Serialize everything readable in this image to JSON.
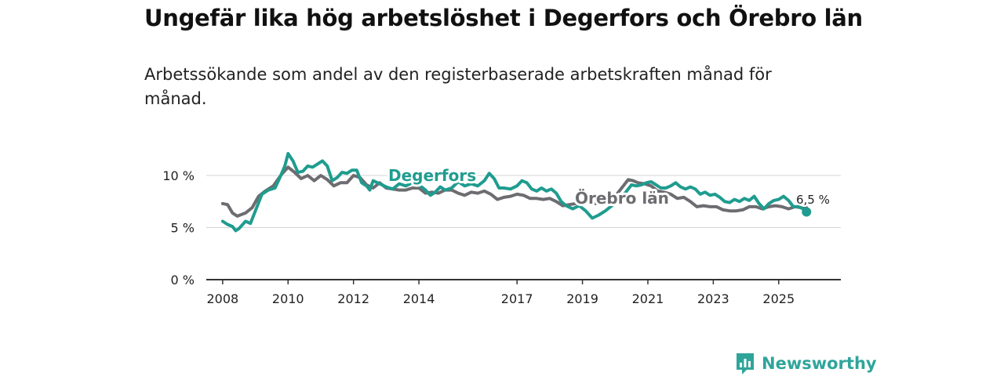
{
  "chart_data": {
    "type": "line",
    "title": "Ungefär lika hög arbetslöshet i Degerfors och Örebro län",
    "subtitle": "Arbetssökande som andel av den registerbaserade arbetskraften månad för månad.",
    "xlabel": "",
    "ylabel": "",
    "y_unit": "%",
    "xlim": [
      2007.5,
      2026.9
    ],
    "ylim": [
      0,
      10
    ],
    "x_ticks": [
      2008,
      2010,
      2012,
      2014,
      2017,
      2019,
      2021,
      2023,
      2025
    ],
    "y_ticks": [
      {
        "value": 0,
        "label": "0 %"
      },
      {
        "value": 5,
        "label": "5 %"
      },
      {
        "value": 10,
        "label": "10 %"
      }
    ],
    "series": [
      {
        "name": "Örebro län",
        "color": "#6d6c70",
        "points": [
          [
            2008.0,
            7.3
          ],
          [
            2008.15,
            7.2
          ],
          [
            2008.3,
            6.4
          ],
          [
            2008.45,
            6.1
          ],
          [
            2008.7,
            6.4
          ],
          [
            2008.9,
            6.9
          ],
          [
            2009.1,
            8.0
          ],
          [
            2009.3,
            8.5
          ],
          [
            2009.55,
            9.0
          ],
          [
            2009.8,
            10.1
          ],
          [
            2010.0,
            10.8
          ],
          [
            2010.2,
            10.3
          ],
          [
            2010.4,
            9.7
          ],
          [
            2010.6,
            10.0
          ],
          [
            2010.8,
            9.5
          ],
          [
            2011.0,
            10.0
          ],
          [
            2011.2,
            9.6
          ],
          [
            2011.4,
            9.0
          ],
          [
            2011.6,
            9.3
          ],
          [
            2011.8,
            9.3
          ],
          [
            2012.0,
            10.0
          ],
          [
            2012.2,
            9.8
          ],
          [
            2012.4,
            9.1
          ],
          [
            2012.6,
            8.8
          ],
          [
            2012.8,
            9.3
          ],
          [
            2013.0,
            8.8
          ],
          [
            2013.2,
            8.7
          ],
          [
            2013.4,
            8.6
          ],
          [
            2013.6,
            8.6
          ],
          [
            2013.8,
            8.8
          ],
          [
            2014.0,
            8.8
          ],
          [
            2014.2,
            8.3
          ],
          [
            2014.4,
            8.4
          ],
          [
            2014.6,
            8.3
          ],
          [
            2014.8,
            8.6
          ],
          [
            2015.0,
            8.6
          ],
          [
            2015.2,
            8.3
          ],
          [
            2015.4,
            8.1
          ],
          [
            2015.6,
            8.4
          ],
          [
            2015.8,
            8.3
          ],
          [
            2016.0,
            8.5
          ],
          [
            2016.2,
            8.2
          ],
          [
            2016.4,
            7.7
          ],
          [
            2016.6,
            7.9
          ],
          [
            2016.8,
            8.0
          ],
          [
            2017.0,
            8.2
          ],
          [
            2017.2,
            8.1
          ],
          [
            2017.4,
            7.8
          ],
          [
            2017.6,
            7.8
          ],
          [
            2017.8,
            7.7
          ],
          [
            2018.0,
            7.8
          ],
          [
            2018.2,
            7.5
          ],
          [
            2018.4,
            7.1
          ],
          [
            2018.6,
            7.2
          ],
          [
            2018.8,
            7.3
          ],
          [
            2019.0,
            7.5
          ],
          [
            2019.2,
            7.4
          ],
          [
            2019.4,
            7.3
          ],
          [
            2019.6,
            7.6
          ],
          [
            2019.8,
            7.8
          ],
          [
            2020.0,
            8.0
          ],
          [
            2020.2,
            8.8
          ],
          [
            2020.4,
            9.6
          ],
          [
            2020.55,
            9.5
          ],
          [
            2020.7,
            9.3
          ],
          [
            2020.9,
            9.2
          ],
          [
            2021.1,
            9.0
          ],
          [
            2021.3,
            8.5
          ],
          [
            2021.5,
            8.4
          ],
          [
            2021.7,
            8.2
          ],
          [
            2021.9,
            7.8
          ],
          [
            2022.1,
            7.9
          ],
          [
            2022.3,
            7.5
          ],
          [
            2022.5,
            7.0
          ],
          [
            2022.7,
            7.1
          ],
          [
            2022.9,
            7.0
          ],
          [
            2023.1,
            7.0
          ],
          [
            2023.3,
            6.7
          ],
          [
            2023.5,
            6.6
          ],
          [
            2023.7,
            6.6
          ],
          [
            2023.9,
            6.7
          ],
          [
            2024.1,
            7.0
          ],
          [
            2024.3,
            7.0
          ],
          [
            2024.5,
            6.8
          ],
          [
            2024.7,
            7.0
          ],
          [
            2024.9,
            7.1
          ],
          [
            2025.1,
            7.0
          ],
          [
            2025.3,
            6.8
          ],
          [
            2025.5,
            7.0
          ],
          [
            2025.7,
            6.9
          ],
          [
            2025.85,
            6.9
          ]
        ]
      },
      {
        "name": "Degerfors",
        "color": "#1f9c8f",
        "points": [
          [
            2008.0,
            5.6
          ],
          [
            2008.15,
            5.3
          ],
          [
            2008.3,
            5.1
          ],
          [
            2008.4,
            4.7
          ],
          [
            2008.5,
            4.9
          ],
          [
            2008.7,
            5.6
          ],
          [
            2008.85,
            5.4
          ],
          [
            2009.0,
            6.6
          ],
          [
            2009.2,
            8.2
          ],
          [
            2009.4,
            8.6
          ],
          [
            2009.6,
            8.8
          ],
          [
            2009.75,
            9.8
          ],
          [
            2009.9,
            10.9
          ],
          [
            2010.0,
            12.1
          ],
          [
            2010.15,
            11.4
          ],
          [
            2010.3,
            10.3
          ],
          [
            2010.45,
            10.4
          ],
          [
            2010.6,
            10.9
          ],
          [
            2010.75,
            10.8
          ],
          [
            2010.9,
            11.1
          ],
          [
            2011.05,
            11.4
          ],
          [
            2011.2,
            10.9
          ],
          [
            2011.35,
            9.5
          ],
          [
            2011.5,
            9.8
          ],
          [
            2011.65,
            10.3
          ],
          [
            2011.8,
            10.2
          ],
          [
            2011.95,
            10.5
          ],
          [
            2012.1,
            10.5
          ],
          [
            2012.25,
            9.3
          ],
          [
            2012.4,
            9.0
          ],
          [
            2012.5,
            8.6
          ],
          [
            2012.6,
            9.5
          ],
          [
            2013.0,
            8.9
          ],
          [
            2013.2,
            8.7
          ],
          [
            2013.4,
            9.2
          ],
          [
            2013.6,
            9.0
          ],
          [
            2013.8,
            9.3
          ],
          [
            2014.0,
            9.1
          ],
          [
            2014.2,
            8.6
          ],
          [
            2014.35,
            8.1
          ],
          [
            2014.5,
            8.4
          ],
          [
            2014.65,
            8.9
          ],
          [
            2014.8,
            8.6
          ],
          [
            2015.0,
            8.8
          ],
          [
            2015.2,
            9.4
          ],
          [
            2015.4,
            9.0
          ],
          [
            2015.6,
            9.2
          ],
          [
            2015.8,
            9.0
          ],
          [
            2016.0,
            9.5
          ],
          [
            2016.15,
            10.2
          ],
          [
            2016.3,
            9.7
          ],
          [
            2016.45,
            8.8
          ],
          [
            2016.6,
            8.8
          ],
          [
            2016.8,
            8.7
          ],
          [
            2017.0,
            9.0
          ],
          [
            2017.15,
            9.5
          ],
          [
            2017.3,
            9.3
          ],
          [
            2017.45,
            8.7
          ],
          [
            2017.6,
            8.5
          ],
          [
            2017.75,
            8.8
          ],
          [
            2017.9,
            8.5
          ],
          [
            2018.05,
            8.7
          ],
          [
            2018.2,
            8.3
          ],
          [
            2018.35,
            7.5
          ],
          [
            2018.5,
            7.1
          ],
          [
            2018.7,
            6.8
          ],
          [
            2018.9,
            7.1
          ],
          [
            2019.1,
            6.6
          ],
          [
            2019.3,
            5.9
          ],
          [
            2019.5,
            6.2
          ],
          [
            2019.7,
            6.6
          ],
          [
            2019.9,
            7.1
          ],
          [
            2020.1,
            7.5
          ],
          [
            2020.3,
            8.3
          ],
          [
            2020.5,
            9.1
          ],
          [
            2020.65,
            9.0
          ],
          [
            2020.8,
            9.1
          ],
          [
            2020.95,
            9.3
          ],
          [
            2021.1,
            9.4
          ],
          [
            2021.25,
            9.1
          ],
          [
            2021.4,
            8.8
          ],
          [
            2021.55,
            8.8
          ],
          [
            2021.7,
            9.0
          ],
          [
            2021.85,
            9.3
          ],
          [
            2022.0,
            8.9
          ],
          [
            2022.15,
            8.7
          ],
          [
            2022.3,
            8.9
          ],
          [
            2022.45,
            8.7
          ],
          [
            2022.6,
            8.2
          ],
          [
            2022.75,
            8.4
          ],
          [
            2022.9,
            8.1
          ],
          [
            2023.05,
            8.2
          ],
          [
            2023.2,
            7.9
          ],
          [
            2023.35,
            7.5
          ],
          [
            2023.5,
            7.4
          ],
          [
            2023.65,
            7.7
          ],
          [
            2023.8,
            7.5
          ],
          [
            2023.95,
            7.8
          ],
          [
            2024.1,
            7.6
          ],
          [
            2024.25,
            8.0
          ],
          [
            2024.4,
            7.3
          ],
          [
            2024.55,
            6.8
          ],
          [
            2024.7,
            7.3
          ],
          [
            2024.85,
            7.6
          ],
          [
            2025.0,
            7.7
          ],
          [
            2025.15,
            8.0
          ],
          [
            2025.3,
            7.6
          ],
          [
            2025.45,
            7.0
          ],
          [
            2025.6,
            7.0
          ],
          [
            2025.75,
            6.8
          ],
          [
            2025.85,
            6.5
          ]
        ]
      }
    ],
    "labels": {
      "degerfors": "Degerfors",
      "orebro": "Örebro län",
      "last_value": "6,5 %"
    }
  },
  "brand": {
    "name": "Newsworthy",
    "icon": "newsworthy-logo-icon"
  }
}
